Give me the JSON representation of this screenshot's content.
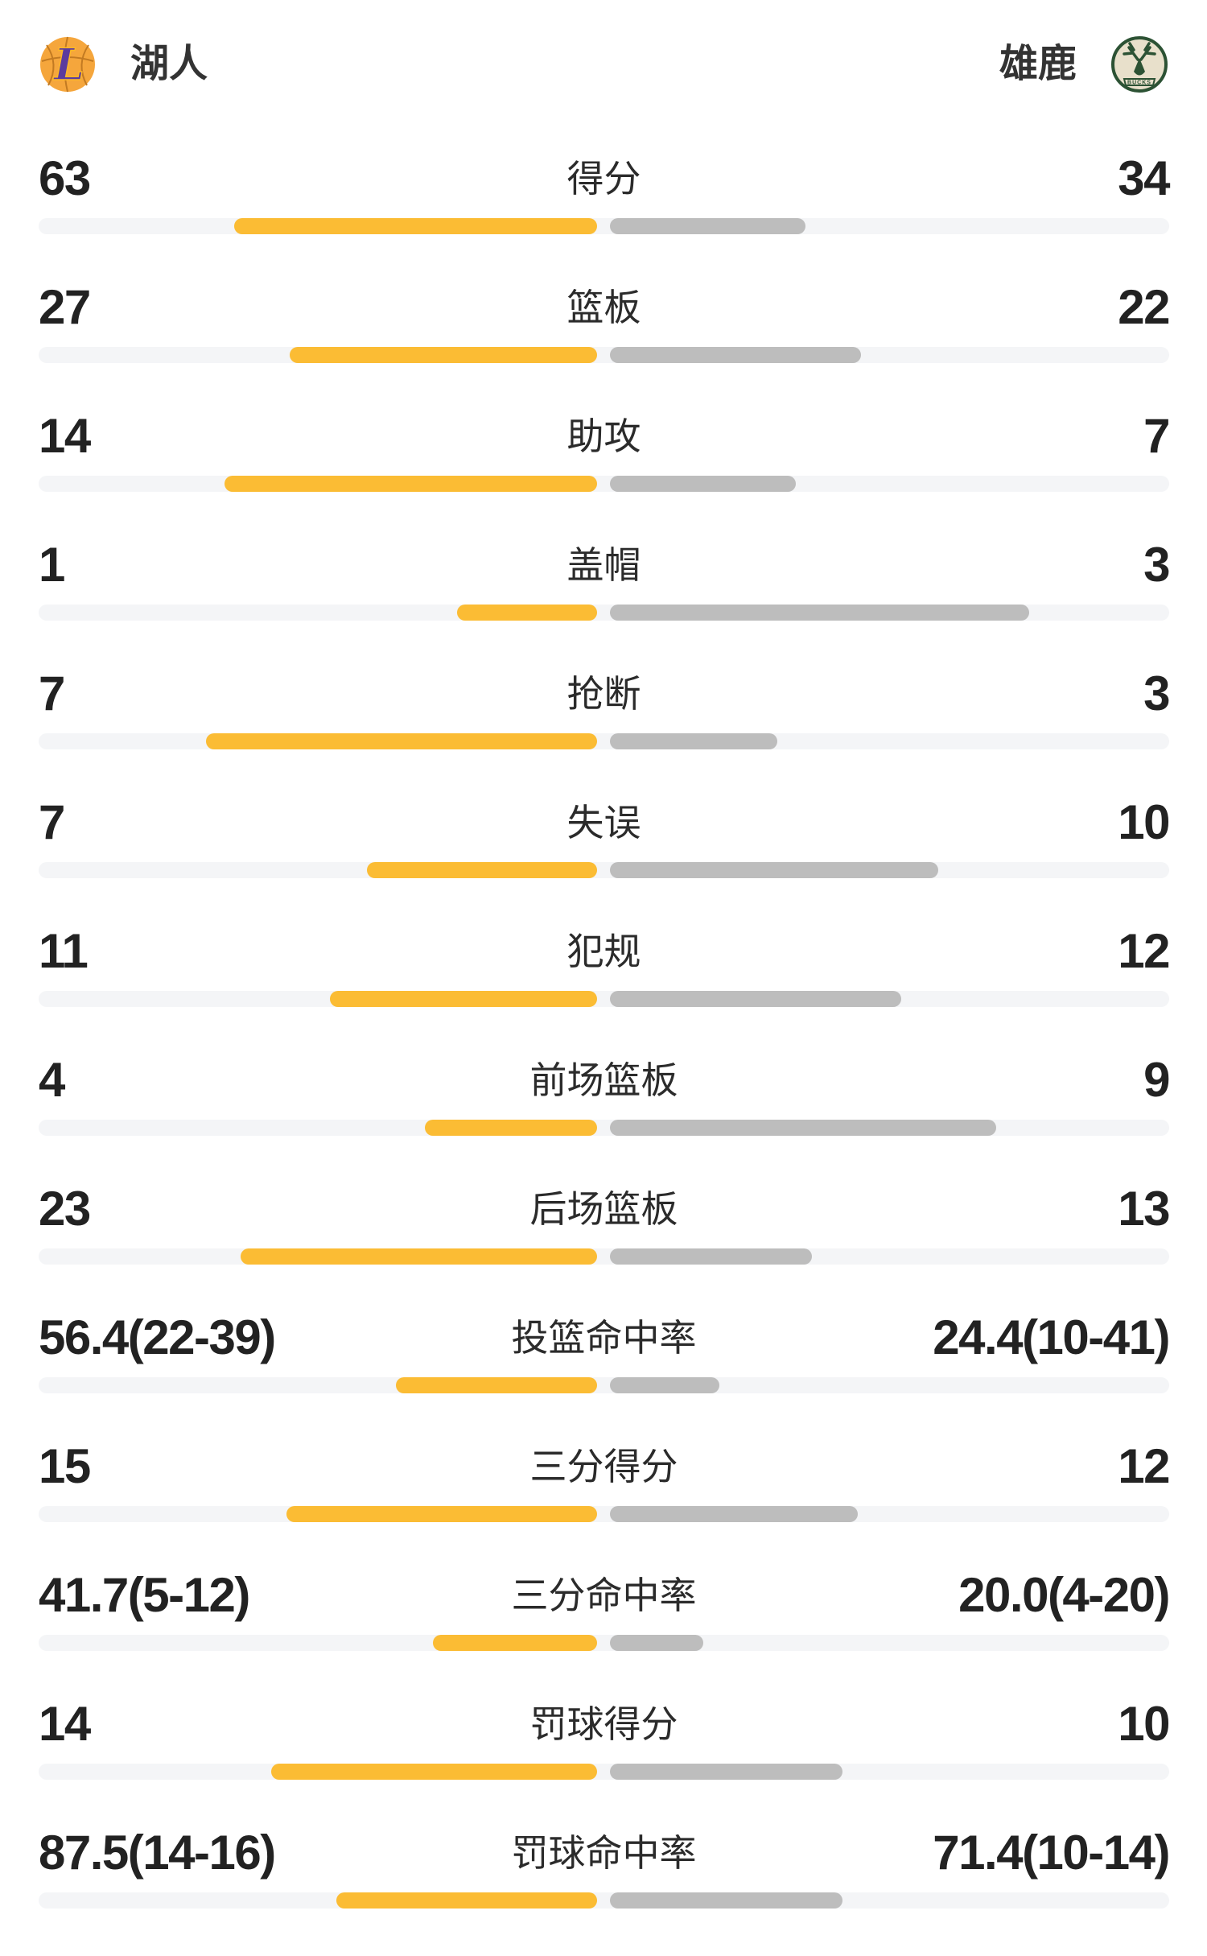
{
  "header": {
    "left_team": "湖人",
    "right_team": "雄鹿"
  },
  "colors": {
    "left_bar": "#FBBC34",
    "right_bar": "#BDBDBD",
    "track": "#F4F5F7",
    "number_text": "#222222",
    "label_text": "#2B2B2B",
    "lakers_purple": "#5B3B9E",
    "lakers_gold": "#F5A63C",
    "bucks_green": "#2C5234",
    "bucks_cream": "#E8E0CB"
  },
  "rows": [
    {
      "label": "得分",
      "left_text": "63",
      "right_text": "34",
      "left_value": 63,
      "right_value": 34,
      "kind": "count"
    },
    {
      "label": "篮板",
      "left_text": "27",
      "right_text": "22",
      "left_value": 27,
      "right_value": 22,
      "kind": "count"
    },
    {
      "label": "助攻",
      "left_text": "14",
      "right_text": "7",
      "left_value": 14,
      "right_value": 7,
      "kind": "count"
    },
    {
      "label": "盖帽",
      "left_text": "1",
      "right_text": "3",
      "left_value": 1,
      "right_value": 3,
      "kind": "count"
    },
    {
      "label": "抢断",
      "left_text": "7",
      "right_text": "3",
      "left_value": 7,
      "right_value": 3,
      "kind": "count"
    },
    {
      "label": "失误",
      "left_text": "7",
      "right_text": "10",
      "left_value": 7,
      "right_value": 10,
      "kind": "count"
    },
    {
      "label": "犯规",
      "left_text": "11",
      "right_text": "12",
      "left_value": 11,
      "right_value": 12,
      "kind": "count"
    },
    {
      "label": "前场篮板",
      "left_text": "4",
      "right_text": "9",
      "left_value": 4,
      "right_value": 9,
      "kind": "count"
    },
    {
      "label": "后场篮板",
      "left_text": "23",
      "right_text": "13",
      "left_value": 23,
      "right_value": 13,
      "kind": "count"
    },
    {
      "label": "投篮命中率",
      "left_text": "56.4(22-39)",
      "right_text": "24.4(10-41)",
      "left_value": 56.4,
      "right_value": 24.4,
      "kind": "percent"
    },
    {
      "label": "三分得分",
      "left_text": "15",
      "right_text": "12",
      "left_value": 15,
      "right_value": 12,
      "kind": "count"
    },
    {
      "label": "三分命中率",
      "left_text": "41.7(5-12)",
      "right_text": "20.0(4-20)",
      "left_value": 41.7,
      "right_value": 20.0,
      "kind": "percent"
    },
    {
      "label": "罚球得分",
      "left_text": "14",
      "right_text": "10",
      "left_value": 14,
      "right_value": 10,
      "kind": "count"
    },
    {
      "label": "罚球命中率",
      "left_text": "87.5(14-16)",
      "right_text": "71.4(10-14)",
      "left_value": 87.5,
      "right_value": 71.4,
      "kind": "percent"
    }
  ],
  "chart_data": {
    "type": "bar",
    "orientation": "horizontal-paired-from-center",
    "categories": [
      "得分",
      "篮板",
      "助攻",
      "盖帽",
      "抢断",
      "失误",
      "犯规",
      "前场篮板",
      "后场篮板",
      "投篮命中率",
      "三分得分",
      "三分命中率",
      "罚球得分",
      "罚球命中率"
    ],
    "series": [
      {
        "name": "湖人",
        "values": [
          63,
          27,
          14,
          1,
          7,
          7,
          11,
          4,
          23,
          56.4,
          15,
          41.7,
          14,
          87.5
        ]
      },
      {
        "name": "雄鹿",
        "values": [
          34,
          22,
          7,
          3,
          3,
          10,
          12,
          9,
          13,
          24.4,
          12,
          20.0,
          10,
          71.4
        ]
      }
    ],
    "shooting_splits": {
      "投篮命中率": {
        "湖人": "22-39",
        "雄鹿": "10-41"
      },
      "三分命中率": {
        "湖人": "5-12",
        "雄鹿": "4-20"
      },
      "罚球命中率": {
        "湖人": "14-16",
        "雄鹿": "10-14"
      }
    },
    "bar_scale_rule": "count rows: width = value/(left+right); percent rows: width = value/(value+100)",
    "legend_position": "top",
    "grid": false
  }
}
